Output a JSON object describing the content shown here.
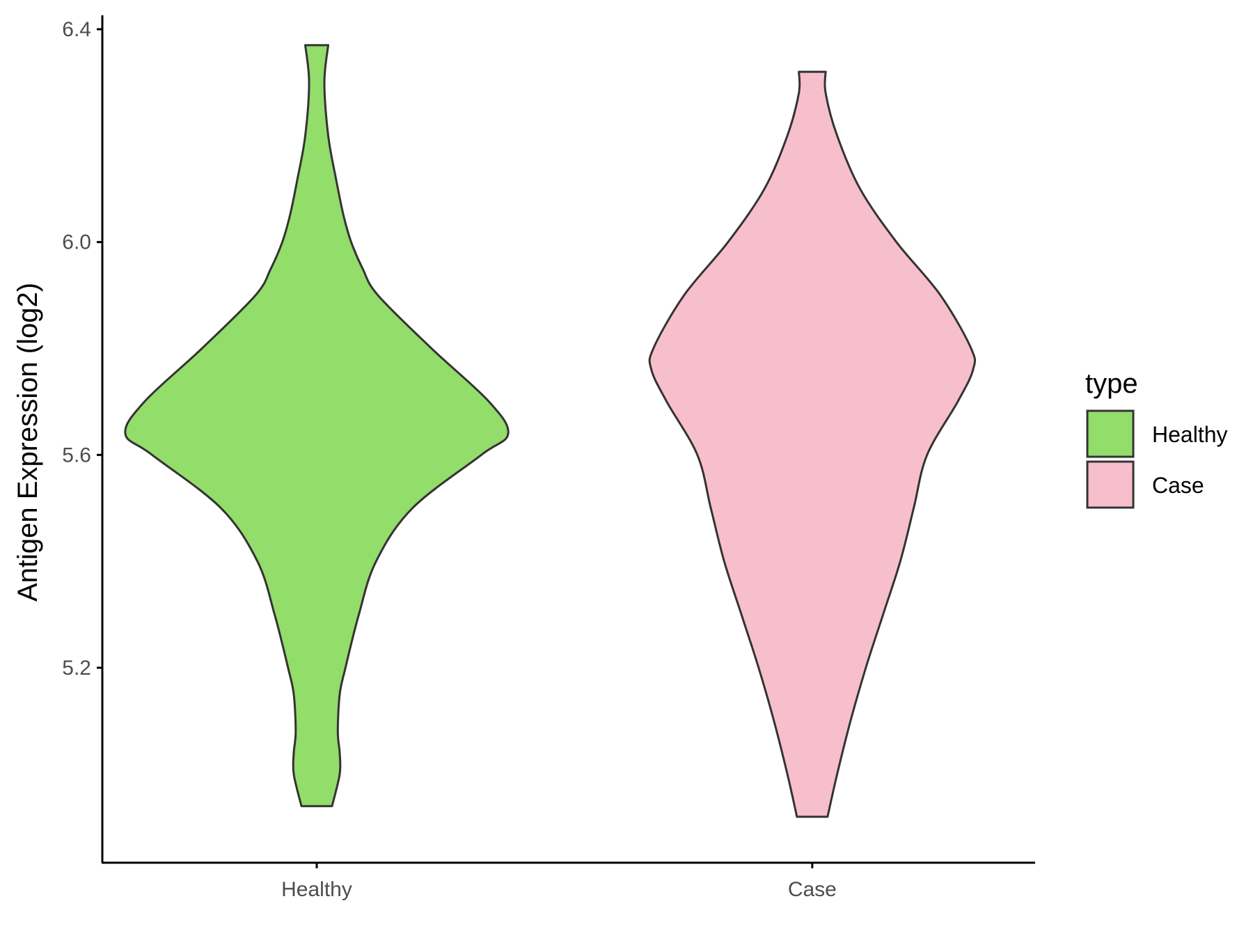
{
  "chart_data": {
    "type": "violin",
    "xlabel": "",
    "ylabel": "Antigen Expression (log2)",
    "ylim": [
      4.83,
      6.43
    ],
    "yticks": [
      "5.2",
      "5.6",
      "6.0",
      "6.4"
    ],
    "categories": [
      "Healthy",
      "Case"
    ],
    "legend": {
      "title": "type",
      "position": "right",
      "entries": [
        "Healthy",
        "Case"
      ]
    },
    "grid": false,
    "series": [
      {
        "name": "Healthy",
        "color": "#93DD6A",
        "ymin": 4.94,
        "ymax": 6.37,
        "profile": [
          [
            4.94,
            0.08
          ],
          [
            5.0,
            0.12
          ],
          [
            5.04,
            0.12
          ],
          [
            5.08,
            0.11
          ],
          [
            5.15,
            0.12
          ],
          [
            5.2,
            0.15
          ],
          [
            5.3,
            0.22
          ],
          [
            5.4,
            0.31
          ],
          [
            5.5,
            0.5
          ],
          [
            5.6,
            0.86
          ],
          [
            5.64,
            1.0
          ],
          [
            5.7,
            0.9
          ],
          [
            5.8,
            0.6
          ],
          [
            5.9,
            0.32
          ],
          [
            5.95,
            0.24
          ],
          [
            6.0,
            0.18
          ],
          [
            6.05,
            0.14
          ],
          [
            6.12,
            0.1
          ],
          [
            6.2,
            0.06
          ],
          [
            6.3,
            0.04
          ],
          [
            6.37,
            0.06
          ]
        ]
      },
      {
        "name": "Case",
        "color": "#F7BFCB",
        "ymin": 4.92,
        "ymax": 6.32,
        "profile": [
          [
            4.92,
            0.08
          ],
          [
            5.0,
            0.13
          ],
          [
            5.1,
            0.2
          ],
          [
            5.2,
            0.28
          ],
          [
            5.3,
            0.37
          ],
          [
            5.4,
            0.46
          ],
          [
            5.5,
            0.53
          ],
          [
            5.6,
            0.6
          ],
          [
            5.7,
            0.76
          ],
          [
            5.76,
            0.84
          ],
          [
            5.8,
            0.83
          ],
          [
            5.9,
            0.67
          ],
          [
            6.0,
            0.44
          ],
          [
            6.1,
            0.25
          ],
          [
            6.2,
            0.13
          ],
          [
            6.28,
            0.07
          ],
          [
            6.32,
            0.07
          ]
        ]
      }
    ]
  }
}
